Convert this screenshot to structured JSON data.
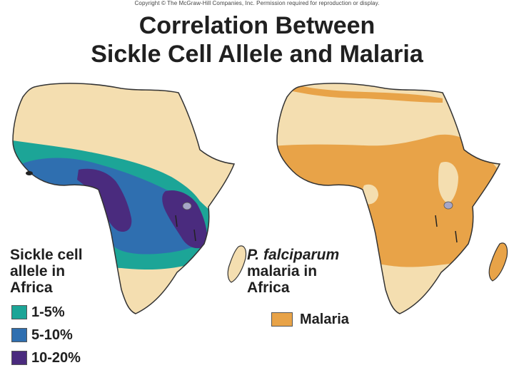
{
  "header": {
    "copyright": "Copyright © The McGraw-Hill Companies, Inc. Permission required for reproduction or display.",
    "title_line1": "Correlation Between",
    "title_line2": "Sickle Cell Allele and Malaria"
  },
  "colors": {
    "land": "#f4deb0",
    "low": "#1ca597",
    "mid": "#2f6fb0",
    "high": "#4a2b7e",
    "malaria": "#e8a348",
    "lake": "#a6a6c8",
    "outline": "#333333"
  },
  "left_legend": {
    "title_lines": [
      "Sickle cell",
      "allele in",
      "Africa"
    ],
    "items": [
      {
        "label": "1-5%",
        "color": "#1ca597"
      },
      {
        "label": "5-10%",
        "color": "#2f6fb0"
      },
      {
        "label": "10-20%",
        "color": "#4a2b7e"
      }
    ]
  },
  "right_legend": {
    "title_lines": [
      "P. falciparum",
      "malaria in",
      "Africa"
    ],
    "items": [
      {
        "label": "Malaria",
        "color": "#e8a348"
      }
    ]
  }
}
